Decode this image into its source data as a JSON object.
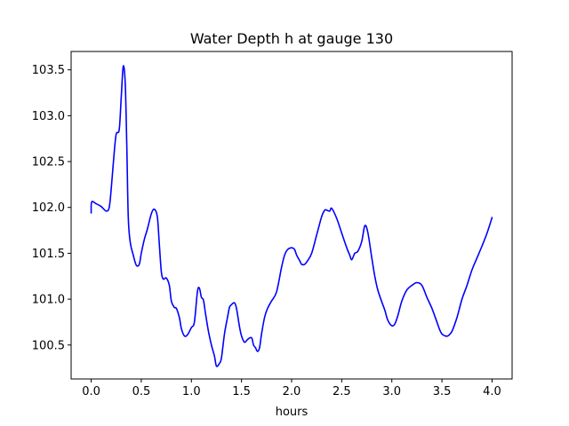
{
  "chart_data": {
    "type": "line",
    "title": "Water Depth h at gauge 130",
    "xlabel": "hours",
    "ylabel": "",
    "xlim": [
      -0.2,
      4.2
    ],
    "ylim": [
      100.13,
      103.7
    ],
    "xticks": [
      0.0,
      0.5,
      1.0,
      1.5,
      2.0,
      2.5,
      3.0,
      3.5,
      4.0
    ],
    "xtick_labels": [
      "0.0",
      "0.5",
      "1.0",
      "1.5",
      "2.0",
      "2.5",
      "3.0",
      "3.5",
      "4.0"
    ],
    "yticks": [
      100.5,
      101.0,
      101.5,
      102.0,
      102.5,
      103.0,
      103.5
    ],
    "ytick_labels": [
      "100.5",
      "101.0",
      "101.5",
      "102.0",
      "102.5",
      "103.0",
      "103.5"
    ],
    "grid": false,
    "series": [
      {
        "color": "#0000ff",
        "x": [
          0.0,
          0.005,
          0.05,
          0.1,
          0.15,
          0.18,
          0.2,
          0.23,
          0.25,
          0.28,
          0.3,
          0.32,
          0.34,
          0.355,
          0.37,
          0.39,
          0.42,
          0.45,
          0.48,
          0.5,
          0.53,
          0.56,
          0.6,
          0.63,
          0.66,
          0.68,
          0.7,
          0.72,
          0.75,
          0.78,
          0.8,
          0.83,
          0.85,
          0.88,
          0.9,
          0.93,
          0.96,
          1.0,
          1.03,
          1.06,
          1.08,
          1.1,
          1.12,
          1.14,
          1.17,
          1.2,
          1.23,
          1.25,
          1.28,
          1.3,
          1.33,
          1.36,
          1.38,
          1.4,
          1.43,
          1.45,
          1.48,
          1.5,
          1.53,
          1.56,
          1.6,
          1.62,
          1.64,
          1.66,
          1.68,
          1.7,
          1.73,
          1.76,
          1.8,
          1.85,
          1.9,
          1.93,
          1.96,
          2.0,
          2.03,
          2.05,
          2.08,
          2.1,
          2.13,
          2.16,
          2.2,
          2.25,
          2.3,
          2.33,
          2.35,
          2.38,
          2.4,
          2.45,
          2.5,
          2.55,
          2.58,
          2.6,
          2.63,
          2.66,
          2.7,
          2.73,
          2.76,
          2.8,
          2.83,
          2.86,
          2.9,
          2.93,
          2.96,
          3.0,
          3.03,
          3.06,
          3.1,
          3.15,
          3.2,
          3.25,
          3.3,
          3.35,
          3.4,
          3.45,
          3.48,
          3.5,
          3.53,
          3.56,
          3.6,
          3.65,
          3.7,
          3.75,
          3.8,
          3.85,
          3.9,
          3.95,
          4.0
        ],
        "y": [
          101.94,
          102.06,
          102.04,
          102.01,
          101.96,
          102.0,
          102.2,
          102.6,
          102.8,
          102.85,
          103.2,
          103.54,
          103.35,
          102.7,
          101.9,
          101.62,
          101.48,
          101.37,
          101.38,
          101.5,
          101.65,
          101.76,
          101.93,
          101.98,
          101.9,
          101.6,
          101.3,
          101.22,
          101.23,
          101.15,
          100.98,
          100.91,
          100.9,
          100.8,
          100.68,
          100.6,
          100.61,
          100.69,
          100.75,
          101.08,
          101.12,
          101.02,
          100.99,
          100.85,
          100.65,
          100.5,
          100.38,
          100.27,
          100.3,
          100.36,
          100.62,
          100.8,
          100.91,
          100.94,
          100.96,
          100.9,
          100.7,
          100.6,
          100.53,
          100.56,
          100.58,
          100.5,
          100.47,
          100.43,
          100.47,
          100.62,
          100.8,
          100.9,
          100.98,
          101.08,
          101.35,
          101.48,
          101.54,
          101.56,
          101.54,
          101.48,
          101.42,
          101.38,
          101.38,
          101.42,
          101.5,
          101.7,
          101.9,
          101.97,
          101.97,
          101.96,
          101.99,
          101.88,
          101.72,
          101.56,
          101.48,
          101.43,
          101.5,
          101.52,
          101.63,
          101.8,
          101.73,
          101.45,
          101.25,
          101.1,
          100.97,
          100.88,
          100.77,
          100.71,
          100.73,
          100.82,
          100.98,
          101.1,
          101.15,
          101.18,
          101.15,
          101.02,
          100.9,
          100.75,
          100.66,
          100.62,
          100.6,
          100.6,
          100.65,
          100.8,
          101.0,
          101.15,
          101.32,
          101.45,
          101.58,
          101.72,
          101.89
        ]
      }
    ]
  }
}
